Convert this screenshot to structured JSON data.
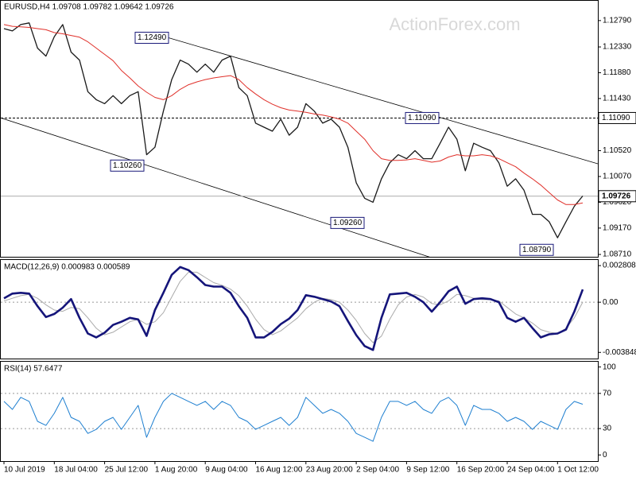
{
  "watermark": "ActionForex.com",
  "chart_data": [
    {
      "type": "line",
      "title": "EURUSD,H4 1.09708 1.09782 1.09642 1.09726",
      "ylim": [
        1.08669,
        1.13135
      ],
      "yticks": [
        {
          "value": 1.1279,
          "label": "1.12790"
        },
        {
          "value": 1.1233,
          "label": "1.12330"
        },
        {
          "value": 1.1188,
          "label": "1.11880"
        },
        {
          "value": 1.1143,
          "label": "1.11430"
        },
        {
          "value": 1.1052,
          "label": "1.10520"
        },
        {
          "value": 1.1007,
          "label": "1.10070"
        },
        {
          "value": 1.0962,
          "label": "1.09620"
        },
        {
          "value": 1.0917,
          "label": "1.09170"
        },
        {
          "value": 1.0871,
          "label": "1.08710"
        }
      ],
      "levels": [
        {
          "value": 1.1109,
          "label": "1.11090"
        }
      ],
      "last": {
        "value": 1.09726,
        "label": "1.09726"
      },
      "annotations": [
        {
          "value": 1.1249,
          "label": "1.12490"
        },
        {
          "value": 1.1026,
          "label": "1.10260"
        },
        {
          "value": 1.0926,
          "label": "1.09260"
        },
        {
          "value": 1.1109,
          "label": "1.11090"
        },
        {
          "value": 1.0879,
          "label": "1.08790"
        }
      ],
      "series": [
        {
          "color": "#1a1a1a",
          "values": [
            1.1265,
            1.1261,
            1.1272,
            1.1275,
            1.1231,
            1.1217,
            1.1251,
            1.1272,
            1.1224,
            1.121,
            1.1155,
            1.1141,
            1.1134,
            1.1148,
            1.1134,
            1.1148,
            1.1155,
            1.1045,
            1.1058,
            1.1121,
            1.1176,
            1.121,
            1.1203,
            1.1189,
            1.1203,
            1.1189,
            1.121,
            1.1217,
            1.1162,
            1.1148,
            1.11,
            1.1093,
            1.1086,
            1.1107,
            1.1079,
            1.1093,
            1.1134,
            1.1121,
            1.11,
            1.1107,
            1.1093,
            1.1058,
            1.0996,
            1.0969,
            1.0962,
            1.1003,
            1.1031,
            1.1045,
            1.1038,
            1.1052,
            1.1038,
            1.1038,
            1.1065,
            1.1093,
            1.1072,
            1.1017,
            1.1065,
            1.1058,
            1.1052,
            1.1031,
            1.099,
            1.1003,
            1.0983,
            1.0941,
            1.0941,
            1.0928,
            1.09,
            1.0928,
            1.0955,
            1.0973
          ]
        },
        {
          "color": "#e0302a",
          "values": [
            1.1272,
            1.1269,
            1.1268,
            1.1267,
            1.1265,
            1.1263,
            1.1258,
            1.1256,
            1.1253,
            1.125,
            1.1242,
            1.1231,
            1.122,
            1.1209,
            1.1192,
            1.1179,
            1.1165,
            1.1154,
            1.1145,
            1.1141,
            1.1148,
            1.1159,
            1.1167,
            1.1172,
            1.1176,
            1.1179,
            1.1181,
            1.1183,
            1.1176,
            1.1162,
            1.1151,
            1.1141,
            1.1133,
            1.1127,
            1.1123,
            1.1121,
            1.1119,
            1.1116,
            1.1114,
            1.1111,
            1.1107,
            1.11,
            1.1086,
            1.1072,
            1.1052,
            1.1038,
            1.1035,
            1.1035,
            1.1036,
            1.1038,
            1.1035,
            1.1032,
            1.1034,
            1.1041,
            1.1045,
            1.1043,
            1.1043,
            1.1045,
            1.1043,
            1.1038,
            1.1031,
            1.1024,
            1.1013,
            1.1003,
            1.0992,
            1.0979,
            1.0966,
            1.0958,
            1.0958,
            1.0961
          ]
        }
      ]
    },
    {
      "type": "line",
      "title": "MACD(12,26,9) 0.000983 0.000589",
      "ylim": [
        -0.00432,
        0.00324
      ],
      "yticks": [
        0.002808,
        {
          "value": 0,
          "label": "0.00"
        },
        -0.003848
      ],
      "levels": [
        0
      ],
      "series": [
        {
          "color": "#aaaaaa",
          "values": [
            0.0001,
            0.0003,
            0.0005,
            0.0006,
            0.0003,
            -0.0002,
            -0.0006,
            -0.0007,
            -0.0004,
            -0.0005,
            -0.0012,
            -0.002,
            -0.0025,
            -0.0023,
            -0.0019,
            -0.0015,
            -0.0013,
            -0.0017,
            -0.0015,
            -0.0008,
            0.0004,
            0.0016,
            0.0023,
            0.0023,
            0.0019,
            0.0015,
            0.0013,
            0.001,
            0.0005,
            -0.0003,
            -0.0013,
            -0.0021,
            -0.0025,
            -0.0022,
            -0.0017,
            -0.0012,
            -0.0005,
            0,
            0.0003,
            0.0002,
            0,
            -0.0006,
            -0.0014,
            -0.0024,
            -0.0031,
            -0.0026,
            -0.0013,
            -0.0002,
            0.0004,
            0.0006,
            0.0004,
            -0.0001,
            -0.0002,
            0.0001,
            0.0006,
            0.0005,
            0.0003,
            0.0002,
            0.0002,
            0.0001,
            -0.0004,
            -0.0009,
            -0.0012,
            -0.0016,
            -0.0021,
            -0.0023,
            -0.0024,
            -0.002,
            -0.0012,
            0
          ]
        },
        {
          "color": "#15157a",
          "values": [
            0.0003,
            0.00066,
            0.00072,
            0.00066,
            -0.0003,
            -0.00114,
            -0.0009,
            -0.00042,
            0.00024,
            -0.0012,
            -0.0024,
            -0.0027,
            -0.00234,
            -0.00174,
            -0.0015,
            -0.0012,
            -0.00132,
            -0.00258,
            -0.0006,
            0.00072,
            0.0021,
            0.0027,
            0.00246,
            0.00192,
            0.00132,
            0.0012,
            0.0012,
            0.00072,
            -0.0003,
            -0.0012,
            -0.0027,
            -0.0027,
            -0.00228,
            -0.00168,
            -0.00126,
            -0.0006,
            0.00054,
            0.00042,
            0.00024,
            6e-05,
            -0.0003,
            -0.00144,
            -0.00252,
            -0.00336,
            -0.00366,
            -0.0012,
            0.0006,
            0.00066,
            0.00072,
            0.00042,
            0,
            -0.00072,
            0,
            0.00084,
            0.0012,
            -0.00012,
            0.00024,
            0.0003,
            0.00024,
            0,
            -0.0012,
            -0.0015,
            -0.0012,
            -0.00198,
            -0.0027,
            -0.00246,
            -0.0024,
            -0.0021,
            -0.00072,
            0.00098
          ]
        }
      ]
    },
    {
      "type": "line",
      "title": "RSI(14) 57.6477",
      "ylim": [
        -7,
        106
      ],
      "yticks": [
        100,
        70,
        30,
        0
      ],
      "levels": [
        70,
        30
      ],
      "categories": [
        "10 Jul 2019",
        null,
        null,
        null,
        null,
        null,
        "18 Jul 04:00",
        null,
        null,
        null,
        null,
        null,
        "25 Jul 12:00",
        null,
        null,
        null,
        null,
        null,
        "1 Aug 20:00",
        null,
        null,
        null,
        null,
        null,
        "9 Aug 04:00",
        null,
        null,
        null,
        null,
        null,
        "16 Aug 12:00",
        null,
        null,
        null,
        null,
        null,
        "23 Aug 20:00",
        null,
        null,
        null,
        null,
        null,
        "2 Sep 04:00",
        null,
        null,
        null,
        null,
        null,
        "9 Sep 12:00",
        null,
        null,
        null,
        null,
        null,
        "16 Sep 20:00",
        null,
        null,
        null,
        null,
        null,
        "24 Sep 04:00",
        null,
        null,
        null,
        null,
        null,
        "1 Oct 12:00",
        null,
        null,
        null
      ],
      "series": [
        {
          "color": "#1e7fd0",
          "values": [
            60.9,
            51.8,
            65.5,
            60.9,
            38.2,
            33.6,
            47.3,
            65.5,
            42.7,
            38.2,
            24.5,
            29.1,
            38.2,
            42.7,
            29.1,
            42.7,
            56.4,
            20,
            42.7,
            60.9,
            70,
            65.5,
            60.9,
            56.4,
            60.9,
            51.8,
            60.9,
            56.4,
            42.7,
            38.2,
            29.1,
            33.6,
            38.2,
            42.7,
            33.6,
            42.7,
            65.5,
            56.4,
            47.3,
            51.8,
            47.3,
            38.2,
            24.5,
            20,
            15.5,
            42.7,
            60.9,
            60.9,
            56.4,
            60.9,
            51.8,
            47.3,
            60.9,
            65.5,
            56.4,
            33.6,
            56.4,
            51.8,
            51.8,
            47.3,
            38.2,
            42.7,
            38.2,
            29.1,
            38.2,
            33.6,
            29.1,
            51.8,
            60.9,
            57.6
          ]
        }
      ]
    }
  ]
}
